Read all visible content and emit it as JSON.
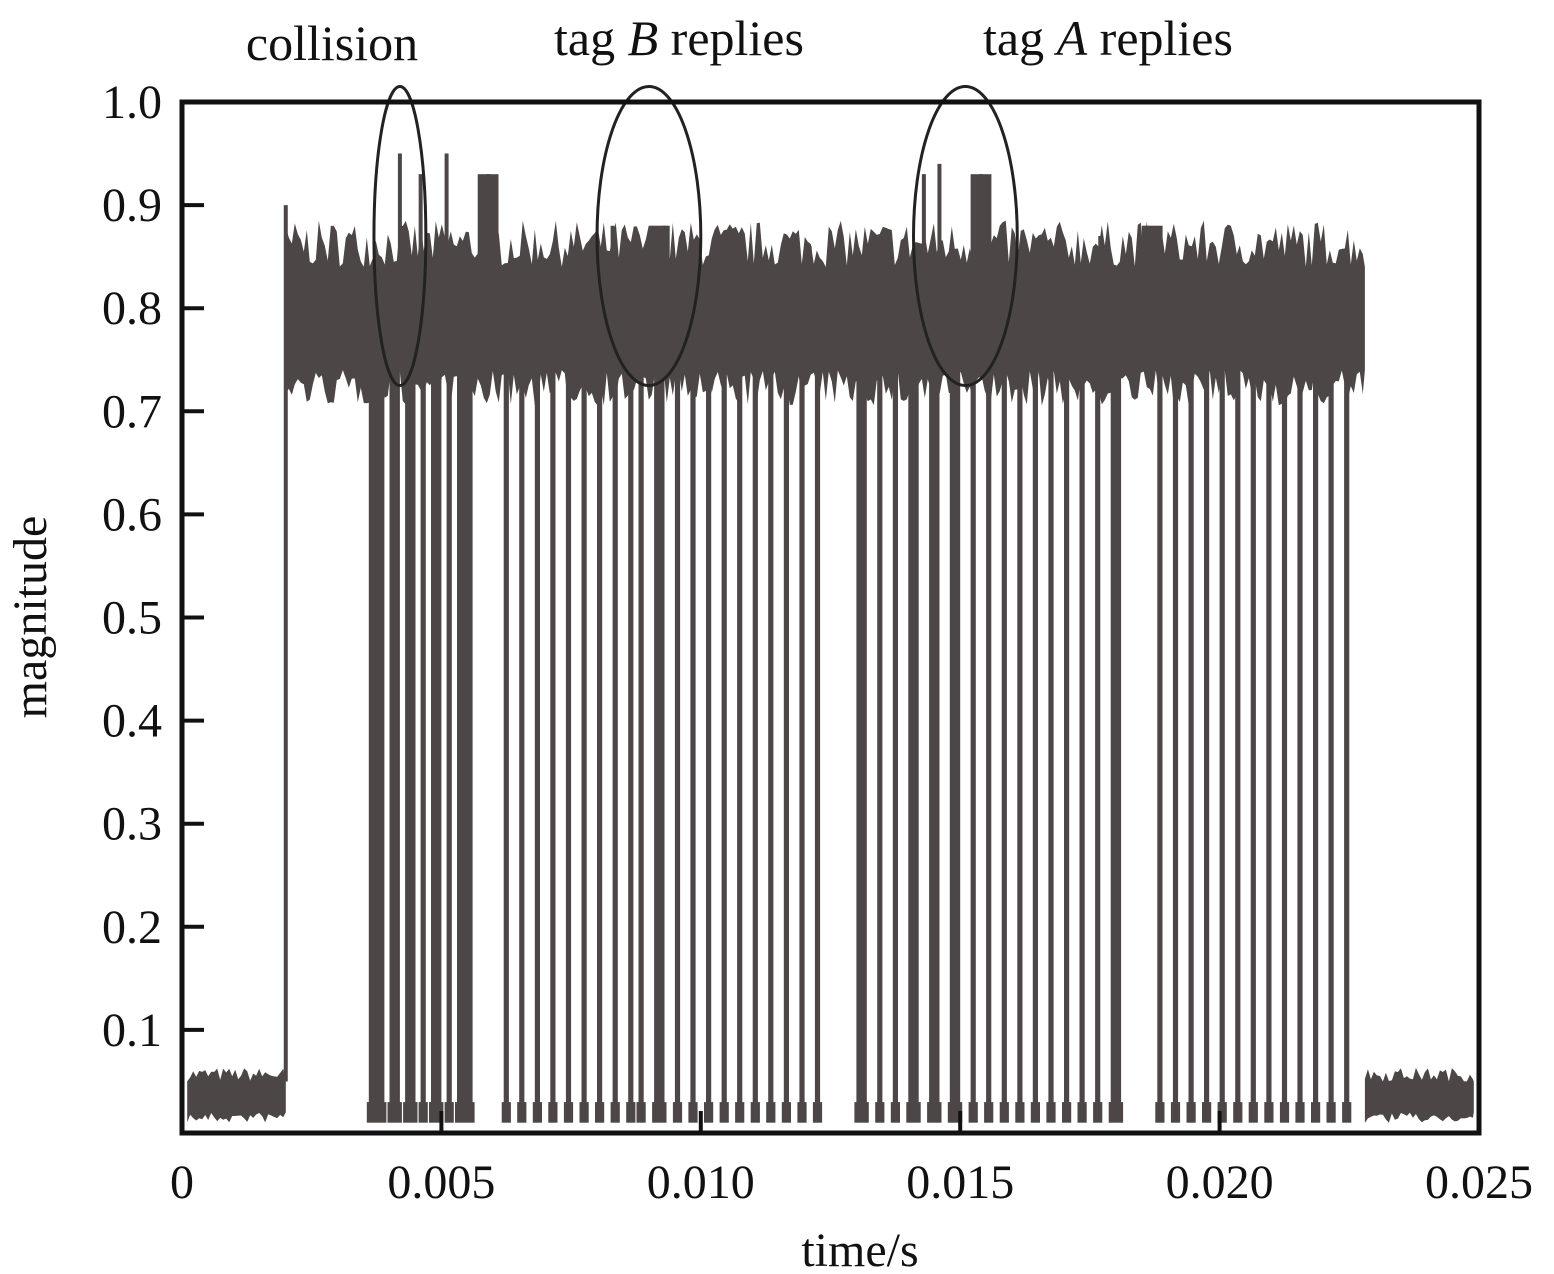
{
  "chart_data": {
    "type": "line",
    "title": "",
    "xlabel": "time/s",
    "ylabel": "magnitude",
    "xlim": [
      0,
      0.025
    ],
    "ylim": [
      0.0,
      1.0
    ],
    "x_ticks": [
      0,
      0.005,
      0.01,
      0.015,
      0.02,
      0.025
    ],
    "x_tick_labels": [
      "0",
      "0.005",
      "0.010",
      "0.015",
      "0.020",
      "0.025"
    ],
    "y_ticks": [
      0.1,
      0.2,
      0.3,
      0.4,
      0.5,
      0.6,
      0.7,
      0.8,
      0.9,
      1.0
    ],
    "y_tick_labels": [
      "0.1",
      "0.2",
      "0.3",
      "0.4",
      "0.5",
      "0.6",
      "0.7",
      "0.8",
      "0.9",
      "1.0"
    ],
    "grid": false,
    "legend": "none",
    "colors": {
      "signal": "#4d4646",
      "axes": "#111111",
      "annotation": "#222222"
    },
    "segments": [
      {
        "x_start": 0.0001,
        "x_end": 0.002,
        "low": 0.02,
        "high": 0.05,
        "kind": "idle"
      },
      {
        "x_start": 0.002,
        "x_end": 0.0228,
        "low": 0.74,
        "high": 0.84,
        "kind": "carrier"
      },
      {
        "x_start": 0.0228,
        "x_end": 0.0249,
        "low": 0.02,
        "high": 0.05,
        "kind": "idle"
      }
    ],
    "initial_spike": {
      "x": 0.002,
      "y": 0.9
    },
    "modulation_bursts": [
      [
        0.0036,
        0.0039
      ],
      [
        0.004,
        0.0042
      ],
      [
        0.0043,
        0.0045
      ],
      [
        0.0046,
        0.0047
      ],
      [
        0.0048,
        0.005
      ],
      [
        0.0051,
        0.0052
      ],
      [
        0.0053,
        0.0056
      ],
      [
        0.0062,
        0.0063
      ],
      [
        0.0065,
        0.0066
      ],
      [
        0.0068,
        0.0069
      ],
      [
        0.0071,
        0.0072
      ],
      [
        0.0074,
        0.0075
      ],
      [
        0.0077,
        0.0078
      ],
      [
        0.008,
        0.0081
      ],
      [
        0.0083,
        0.0084
      ],
      [
        0.0086,
        0.0087
      ],
      [
        0.0088,
        0.0089
      ],
      [
        0.0091,
        0.0093
      ],
      [
        0.0095,
        0.0096
      ],
      [
        0.0098,
        0.0099
      ],
      [
        0.0101,
        0.0102
      ],
      [
        0.0104,
        0.0105
      ],
      [
        0.0107,
        0.0108
      ],
      [
        0.011,
        0.0111
      ],
      [
        0.0113,
        0.0114
      ],
      [
        0.0116,
        0.0117
      ],
      [
        0.0119,
        0.012
      ],
      [
        0.0122,
        0.0123
      ],
      [
        0.013,
        0.0132
      ],
      [
        0.0134,
        0.0135
      ],
      [
        0.0137,
        0.0138
      ],
      [
        0.014,
        0.0142
      ],
      [
        0.0144,
        0.0146
      ],
      [
        0.0148,
        0.015
      ],
      [
        0.0152,
        0.0153
      ],
      [
        0.0155,
        0.0156
      ],
      [
        0.0158,
        0.0159
      ],
      [
        0.0161,
        0.0162
      ],
      [
        0.0164,
        0.0165
      ],
      [
        0.0167,
        0.0168
      ],
      [
        0.017,
        0.0171
      ],
      [
        0.0173,
        0.0174
      ],
      [
        0.0176,
        0.0177
      ],
      [
        0.0179,
        0.0181
      ],
      [
        0.0188,
        0.0189
      ],
      [
        0.0191,
        0.0192
      ],
      [
        0.0194,
        0.0195
      ],
      [
        0.0197,
        0.0198
      ],
      [
        0.02,
        0.0201
      ],
      [
        0.0203,
        0.0204
      ],
      [
        0.0206,
        0.0207
      ],
      [
        0.0209,
        0.021
      ],
      [
        0.0212,
        0.0213
      ],
      [
        0.0215,
        0.0216
      ],
      [
        0.0218,
        0.0219
      ],
      [
        0.0221,
        0.0222
      ],
      [
        0.0224,
        0.0225
      ]
    ],
    "peaks": [
      {
        "x": 0.0038,
        "y": 0.85
      },
      {
        "x": 0.0042,
        "y": 0.95
      },
      {
        "x": 0.0046,
        "y": 0.93
      },
      {
        "x": 0.0051,
        "y": 0.95
      },
      {
        "x": 0.0059,
        "y": 0.93
      },
      {
        "x": 0.0083,
        "y": 0.88
      },
      {
        "x": 0.0093,
        "y": 0.88
      },
      {
        "x": 0.0121,
        "y": 0.86
      },
      {
        "x": 0.0143,
        "y": 0.93
      },
      {
        "x": 0.0146,
        "y": 0.94
      },
      {
        "x": 0.0154,
        "y": 0.93
      },
      {
        "x": 0.0177,
        "y": 0.87
      },
      {
        "x": 0.0186,
        "y": 0.88
      }
    ],
    "peak_blocks": [
      {
        "x_start": 0.0057,
        "x_end": 0.0061,
        "y": 0.93
      },
      {
        "x_start": 0.009,
        "x_end": 0.0094,
        "y": 0.88
      },
      {
        "x_start": 0.0152,
        "x_end": 0.0156,
        "y": 0.93
      },
      {
        "x_start": 0.0185,
        "x_end": 0.0189,
        "y": 0.88
      }
    ],
    "annotations": [
      {
        "text": "collision",
        "ellipse_center": [
          0.0042,
          0.87
        ],
        "ellipse_radius": [
          0.0005,
          0.145
        ]
      },
      {
        "text_parts": [
          "tag ",
          "B",
          " replies"
        ],
        "ellipse_center": [
          0.009,
          0.87
        ],
        "ellipse_radius": [
          0.001,
          0.145
        ]
      },
      {
        "text_parts": [
          "tag ",
          "A",
          " replies"
        ],
        "ellipse_center": [
          0.0151,
          0.87
        ],
        "ellipse_radius": [
          0.001,
          0.145
        ]
      }
    ]
  }
}
